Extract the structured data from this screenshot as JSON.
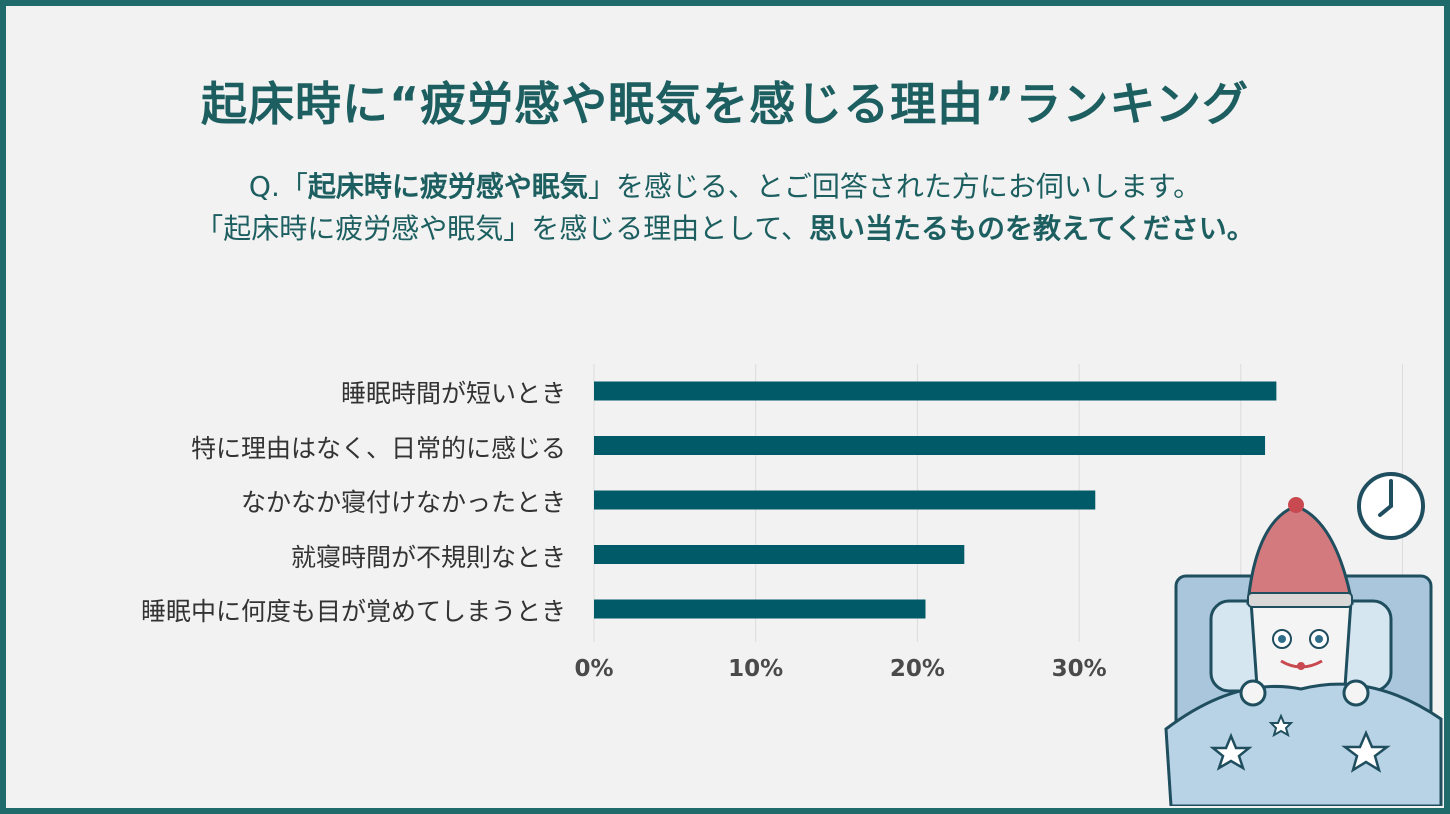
{
  "title": "起床時に“疲労感や眠気を感じる理由”ランキング",
  "question": {
    "line1_prefix": "Q.「",
    "line1_bold": "起床時に疲労感や眠気",
    "line1_suffix": "」を感じる、とご回答された方にお伺いします。",
    "line2_prefix": "「起床時に疲労感や眠気」を感じる理由として、",
    "line2_bold": "思い当たるものを教えてください。"
  },
  "colors": {
    "bar": "#005a68",
    "accent": "#1d5f60",
    "frame": "#1f6b6b",
    "background": "#f2f2f2"
  },
  "illustration": {
    "icons": [
      "clock-icon",
      "sleepy-character",
      "blanket",
      "star-icon"
    ]
  },
  "chart_data": {
    "type": "bar",
    "orientation": "horizontal",
    "categories": [
      "睡眠時間が短いとき",
      "特に理由はなく、日常的に感じる",
      "なかなか寝付けなかったとき",
      "就寝時間が不規則なとき",
      "睡眠中に何度も目が覚めてしまうとき"
    ],
    "values": [
      42.2,
      41.5,
      31.0,
      22.9,
      20.5
    ],
    "xlim": [
      0,
      50
    ],
    "xticks": [
      "0%",
      "10%",
      "20%",
      "30%"
    ],
    "tick_values": [
      0,
      10,
      20,
      30
    ],
    "grid": true,
    "unit": "%"
  }
}
